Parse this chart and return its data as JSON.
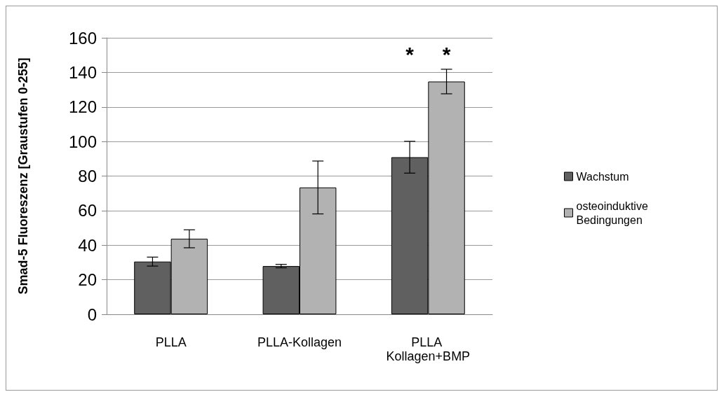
{
  "chart_data": {
    "type": "bar",
    "ylabel": "Smad-5 Fluoreszenz [Graustufen 0-255]",
    "categories": [
      "PLLA",
      "PLLA-Kollagen",
      "PLLA Kollagen+BMP"
    ],
    "series": [
      {
        "name": "Wachstum",
        "color": "#606060",
        "values": [
          30.5,
          27.9,
          90.9
        ],
        "errors": [
          2.6,
          1,
          9.2
        ]
      },
      {
        "name": "osteoinduktive Bedingungen",
        "color": "#b2b2b2",
        "values": [
          43.7,
          73.4,
          134.7
        ],
        "errors": [
          5.2,
          15.3,
          7.1
        ]
      }
    ],
    "annotations": [
      "*",
      "*"
    ],
    "ylim": [
      0,
      160
    ],
    "yticks": [
      0,
      20,
      40,
      60,
      80,
      100,
      120,
      140,
      160
    ],
    "grid": "y",
    "legend": "right"
  }
}
